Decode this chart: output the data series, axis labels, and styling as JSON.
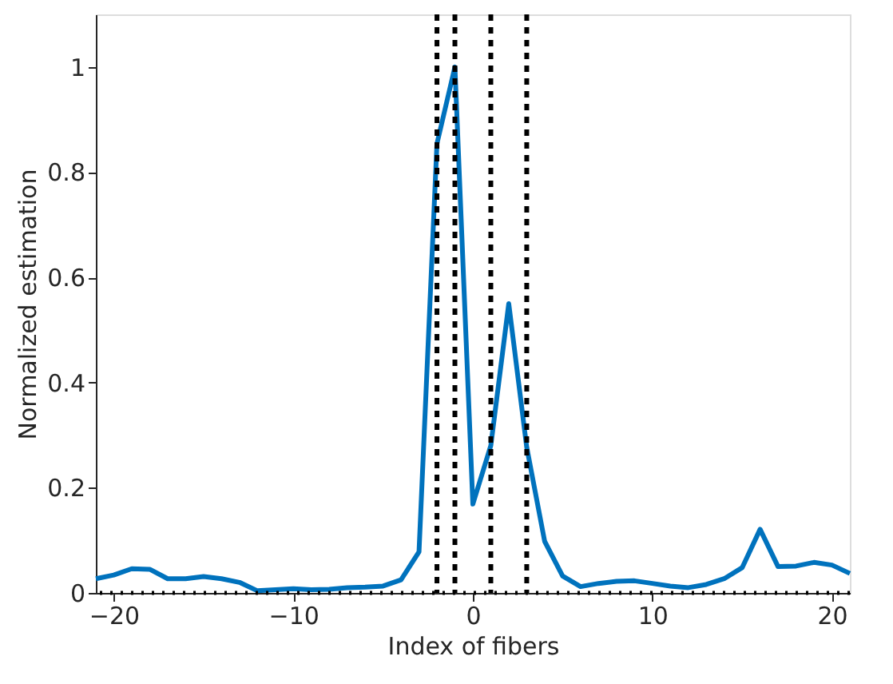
{
  "chart_data": {
    "type": "line",
    "xlabel": "Index of fibers",
    "ylabel": "Normalized estimation",
    "x": [
      -21,
      -20,
      -19,
      -18,
      -17,
      -16,
      -15,
      -14,
      -13,
      -12,
      -11,
      -10,
      -9,
      -8,
      -7,
      -6,
      -5,
      -4,
      -3,
      -2,
      -1,
      0,
      1,
      2,
      3,
      4,
      5,
      6,
      7,
      8,
      9,
      10,
      11,
      12,
      13,
      14,
      15,
      16,
      17,
      18,
      19,
      20,
      21
    ],
    "series": [
      {
        "color": "#0072bd",
        "values": [
          0.027,
          0.034,
          0.046,
          0.045,
          0.027,
          0.027,
          0.031,
          0.027,
          0.02,
          0.004,
          0.006,
          0.008,
          0.006,
          0.007,
          0.01,
          0.011,
          0.013,
          0.025,
          0.078,
          0.854,
          1.0,
          0.169,
          0.28,
          0.55,
          0.277,
          0.098,
          0.032,
          0.012,
          0.018,
          0.022,
          0.023,
          0.018,
          0.013,
          0.01,
          0.016,
          0.027,
          0.048,
          0.121,
          0.05,
          0.051,
          0.058,
          0.053,
          0.037
        ]
      }
    ],
    "xlim": [
      -21,
      21
    ],
    "xticks": [
      -20,
      -10,
      0,
      10,
      20
    ],
    "ylim": [
      0,
      1.1
    ],
    "yticks": [
      0,
      0.2,
      0.4,
      0.6,
      0.8,
      1
    ],
    "ref_lines": [
      {
        "axis": "x",
        "value": -2,
        "color": "#000000",
        "line_style": "dashed"
      },
      {
        "axis": "x",
        "value": -1,
        "color": "#000000",
        "line_style": "dashed"
      },
      {
        "axis": "x",
        "value": 1,
        "color": "#000000",
        "line_style": "dashed"
      },
      {
        "axis": "x",
        "value": 3,
        "color": "#000000",
        "line_style": "dashed"
      },
      {
        "axis": "y",
        "value": 0,
        "color": "#000000",
        "line_style": "dotted"
      }
    ],
    "grid": false,
    "marker": "none",
    "line_style": "solid"
  }
}
